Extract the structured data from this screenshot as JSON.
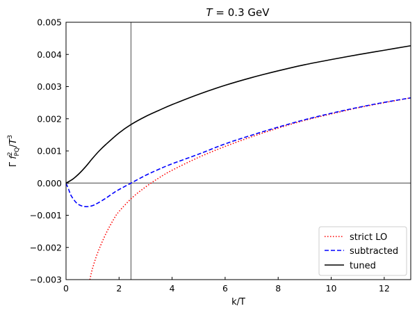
{
  "chart_data": {
    "type": "line",
    "title": "T = 0.3 GeV",
    "title_parts": {
      "var": "T",
      "rest": " = 0.3 GeV"
    },
    "xlabel": "k/T",
    "ylabel": "Γ f²_PQ/T³",
    "ylabel_parts": {
      "gamma": "Γ",
      "f": "f",
      "sup": "2",
      "sub": "PQ",
      "slash": "/",
      "T": "T",
      "tsup": "3"
    },
    "xlim": [
      0,
      13
    ],
    "ylim": [
      -0.003,
      0.005
    ],
    "x_ticks": [
      0,
      2,
      4,
      6,
      8,
      10,
      12
    ],
    "x_tick_labels": [
      "0",
      "2",
      "4",
      "6",
      "8",
      "10",
      "12"
    ],
    "y_ticks": [
      -0.003,
      -0.002,
      -0.001,
      0.0,
      0.001,
      0.002,
      0.003,
      0.004,
      0.005
    ],
    "y_tick_labels": [
      "−0.003",
      "−0.002",
      "−0.001",
      "0.000",
      "0.001",
      "0.002",
      "0.003",
      "0.004",
      "0.005"
    ],
    "reference_lines": {
      "vertical_x": 2.45,
      "horizontal_y": 0.0,
      "color": "#808080"
    },
    "grid": false,
    "legend_position": "bottom-right",
    "series": [
      {
        "name": "strict LO",
        "style": "dotted",
        "color": "#ff0000",
        "x": [
          0.9,
          1.0,
          1.2,
          1.5,
          1.8,
          2.0,
          2.5,
          3.0,
          3.5,
          4.0,
          5.0,
          6.0,
          7.0,
          8.0,
          9.0,
          10.0,
          11.0,
          12.0,
          13.0
        ],
        "y": [
          -0.003,
          -0.00265,
          -0.00215,
          -0.00158,
          -0.00112,
          -0.00088,
          -0.00045,
          -0.00012,
          0.00016,
          0.0004,
          0.0008,
          0.00114,
          0.00144,
          0.00171,
          0.00195,
          0.00215,
          0.00234,
          0.0025,
          0.00265
        ]
      },
      {
        "name": "subtracted",
        "style": "dashed",
        "color": "#0000ff",
        "x": [
          0.0,
          0.1,
          0.2,
          0.4,
          0.6,
          0.8,
          1.0,
          1.2,
          1.5,
          1.8,
          2.0,
          2.45,
          3.0,
          3.5,
          4.0,
          5.0,
          6.0,
          7.0,
          8.0,
          9.0,
          10.0,
          11.0,
          12.0,
          13.0
        ],
        "y": [
          0.0,
          -0.0002,
          -0.0004,
          -0.00062,
          -0.00071,
          -0.00073,
          -0.0007,
          -0.00062,
          -0.00047,
          -0.0003,
          -0.0002,
          0.0,
          0.00024,
          0.00043,
          0.0006,
          0.0009,
          0.00122,
          0.00149,
          0.00174,
          0.00197,
          0.00217,
          0.00235,
          0.00251,
          0.00265
        ]
      },
      {
        "name": "tuned",
        "style": "solid",
        "color": "#000000",
        "x": [
          0.0,
          0.25,
          0.5,
          0.75,
          1.0,
          1.25,
          1.5,
          2.0,
          2.45,
          3.0,
          3.5,
          4.0,
          5.0,
          6.0,
          7.0,
          8.0,
          9.0,
          10.0,
          11.0,
          12.0,
          13.0
        ],
        "y": [
          0.0,
          0.00012,
          0.0003,
          0.00052,
          0.00077,
          0.001,
          0.0012,
          0.00156,
          0.00182,
          0.00207,
          0.00226,
          0.00244,
          0.00276,
          0.00304,
          0.00328,
          0.00349,
          0.00368,
          0.00384,
          0.00399,
          0.00413,
          0.00427
        ]
      }
    ]
  }
}
